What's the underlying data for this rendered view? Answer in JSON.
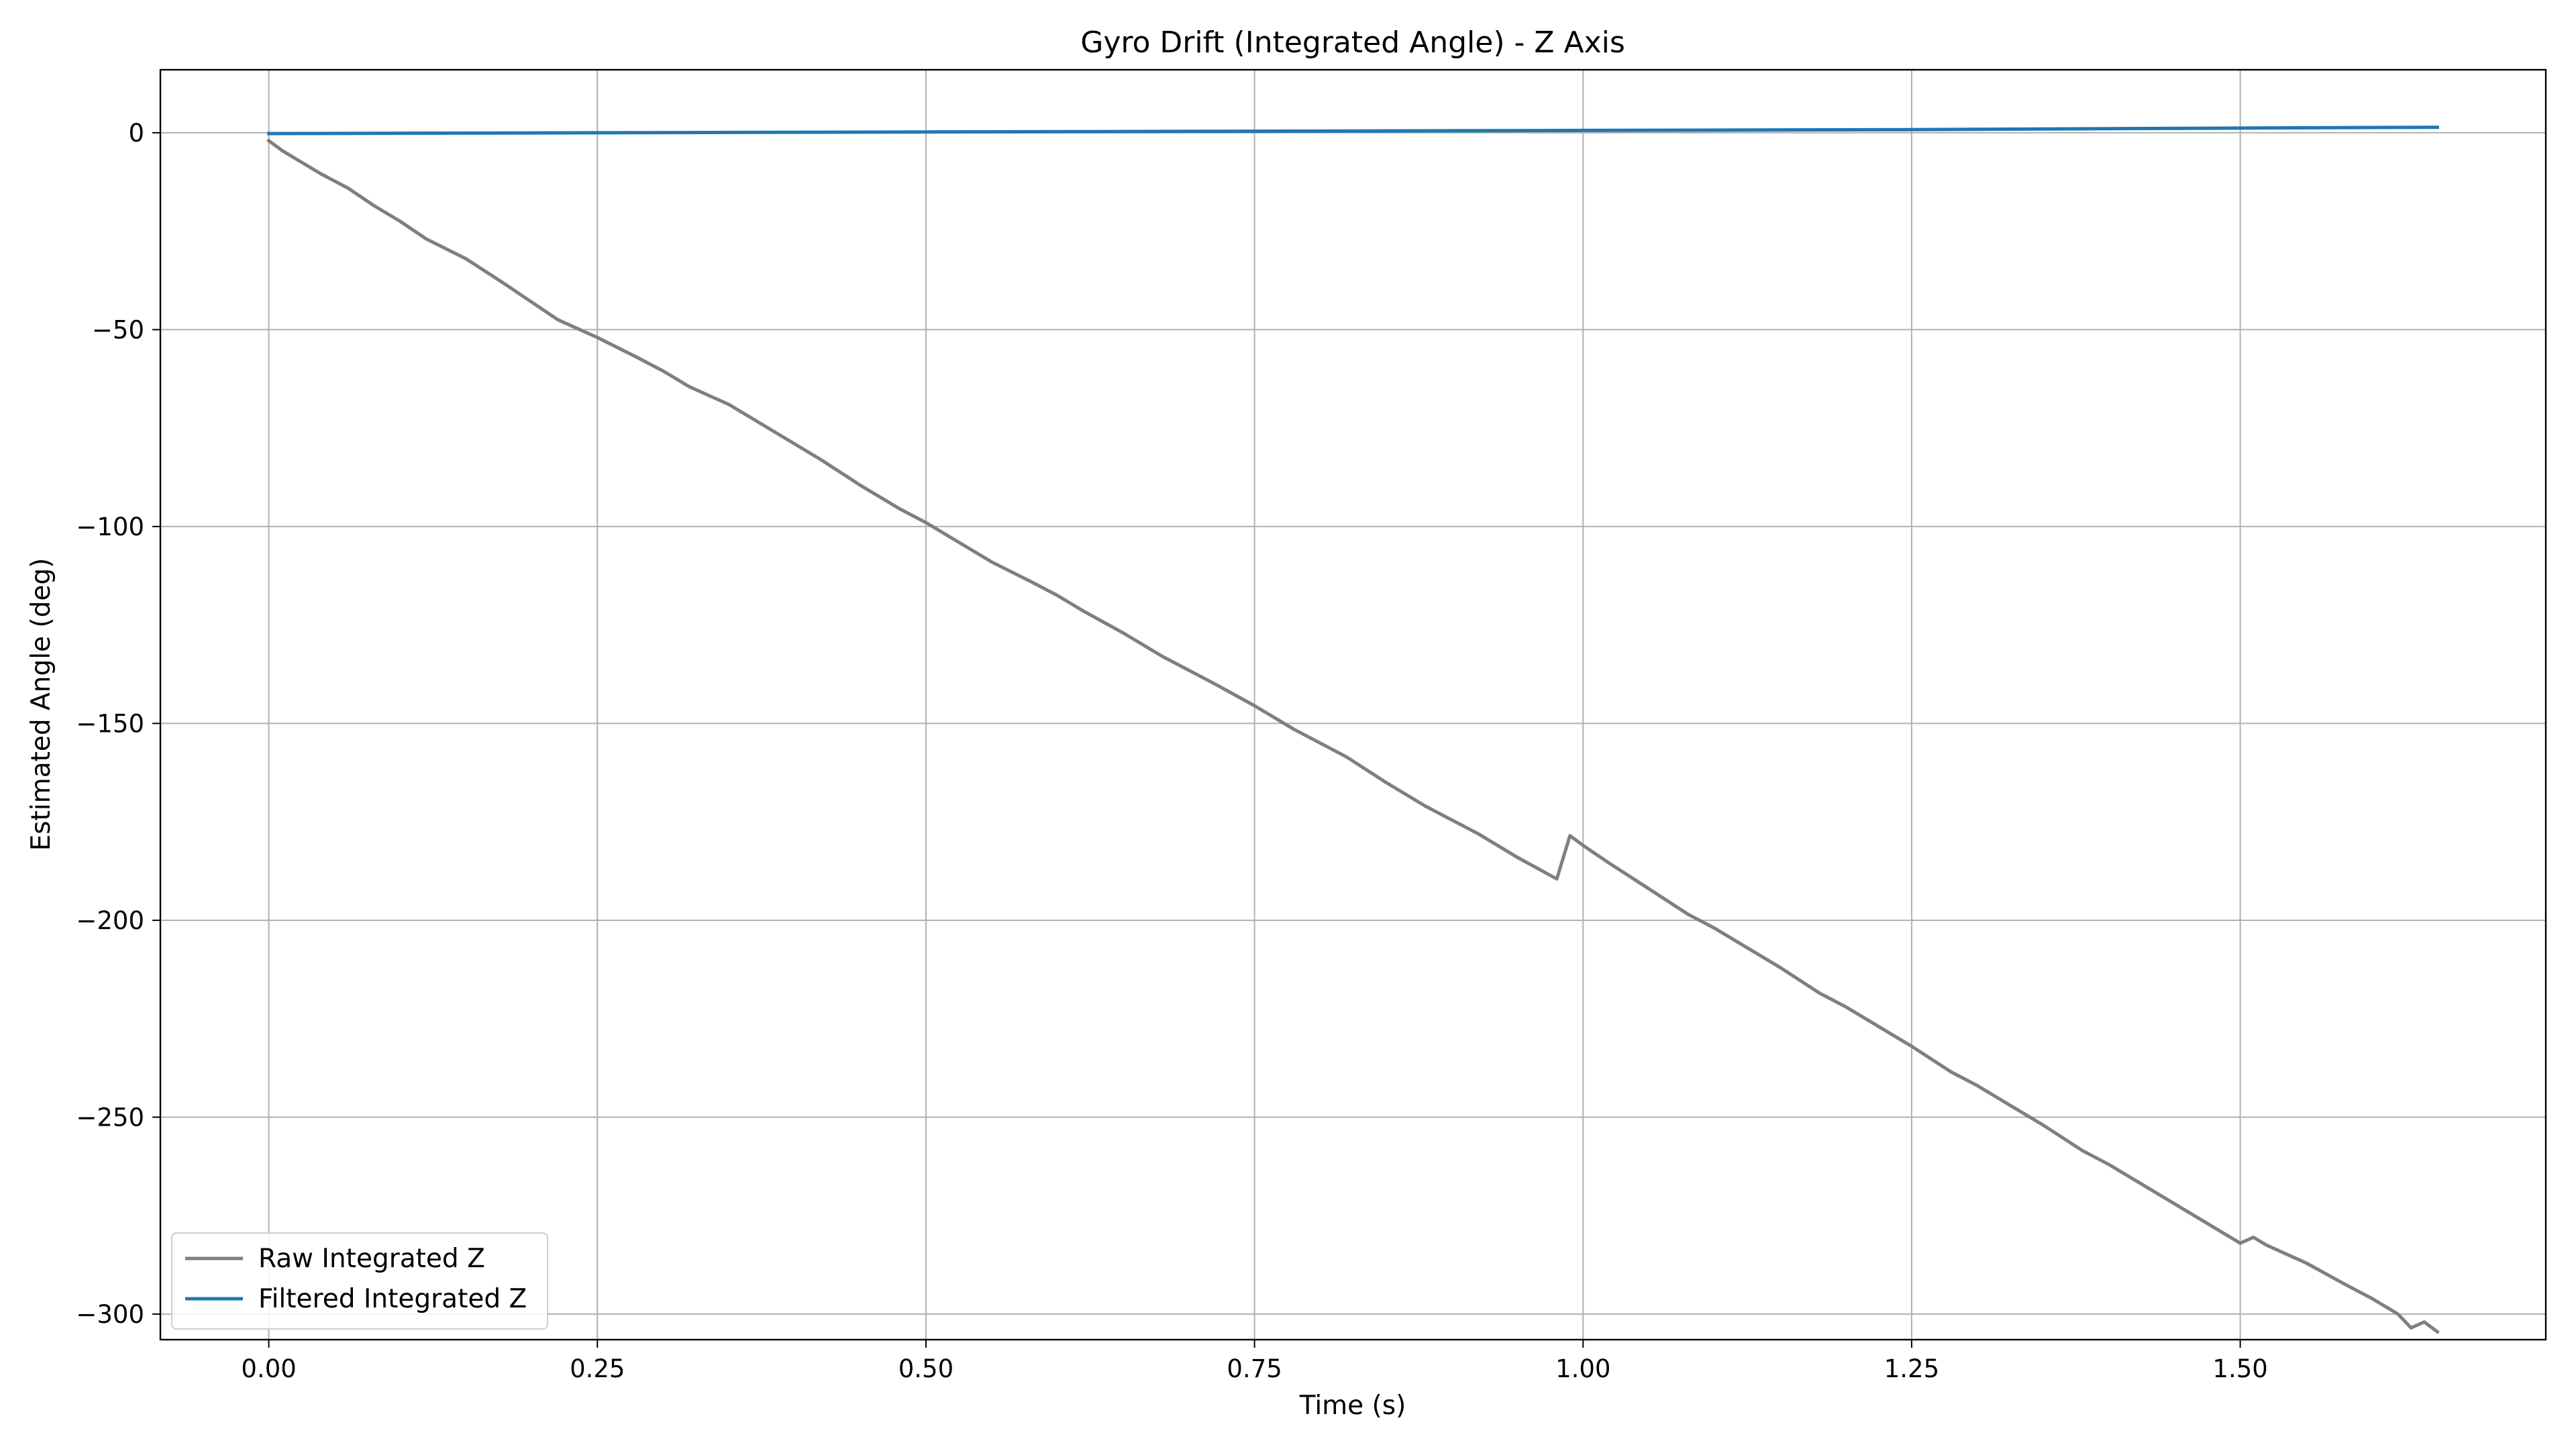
{
  "chart_data": {
    "type": "line",
    "title": "Gyro Drift (Integrated Angle) - Z Axis",
    "xlabel": "Time (s)",
    "ylabel": "Estimated Angle (deg)",
    "xlim": [
      -0.0825,
      1.7325
    ],
    "ylim": [
      -306.5,
      16.0
    ],
    "x_ticks": [
      0.0,
      0.25,
      0.5,
      0.75,
      1.0,
      1.25,
      1.5
    ],
    "x_tick_labels": [
      "0.00",
      "0.25",
      "0.50",
      "0.75",
      "1.00",
      "1.25",
      "1.50"
    ],
    "y_ticks": [
      0,
      -50,
      -100,
      -150,
      -200,
      -250,
      -300
    ],
    "y_tick_labels": [
      "0",
      "−50",
      "−100",
      "−150",
      "−200",
      "−250",
      "−300"
    ],
    "grid": true,
    "legend_position": "lower-left",
    "series": [
      {
        "name": "Raw Integrated Z",
        "color": "#7f7f7f",
        "x": [
          0.0,
          0.01,
          0.02,
          0.04,
          0.06,
          0.08,
          0.1,
          0.12,
          0.15,
          0.18,
          0.2,
          0.22,
          0.25,
          0.28,
          0.3,
          0.32,
          0.35,
          0.38,
          0.4,
          0.42,
          0.45,
          0.48,
          0.5,
          0.52,
          0.55,
          0.58,
          0.6,
          0.62,
          0.65,
          0.68,
          0.7,
          0.72,
          0.75,
          0.78,
          0.8,
          0.82,
          0.85,
          0.88,
          0.9,
          0.92,
          0.95,
          0.98,
          0.99,
          1.0,
          1.02,
          1.05,
          1.08,
          1.1,
          1.12,
          1.15,
          1.18,
          1.2,
          1.22,
          1.25,
          1.28,
          1.3,
          1.32,
          1.35,
          1.38,
          1.4,
          1.42,
          1.45,
          1.48,
          1.5,
          1.51,
          1.52,
          1.55,
          1.58,
          1.6,
          1.62,
          1.63,
          1.64,
          1.65
        ],
        "y": [
          -2,
          -4.5,
          -6.5,
          -10.5,
          -14,
          -18.5,
          -22.5,
          -27,
          -32,
          -38.5,
          -43,
          -47.5,
          -52,
          -57,
          -60.5,
          -64.5,
          -69,
          -75,
          -79,
          -83,
          -89.5,
          -95.5,
          -99,
          -103,
          -109,
          -114,
          -117.5,
          -121.5,
          -127,
          -133,
          -136.5,
          -140,
          -145.5,
          -151.5,
          -155,
          -158.5,
          -165,
          -171,
          -174.5,
          -178,
          -184,
          -189.5,
          -178.5,
          -181,
          -185.5,
          -192,
          -198.5,
          -202,
          -206,
          -212,
          -218.5,
          -222,
          -226,
          -232,
          -238.5,
          -242,
          -246,
          -252,
          -258.5,
          -262,
          -266,
          -272,
          -278,
          -282,
          -280.5,
          -282.5,
          -287,
          -292.5,
          -296,
          -300,
          -303.5,
          -302,
          -304.5
        ]
      },
      {
        "name": "Filtered Integrated Z",
        "color": "#1f77b4",
        "x": [
          0.0,
          0.25,
          0.5,
          0.75,
          1.0,
          1.25,
          1.5,
          1.65
        ],
        "y": [
          -0.2,
          0.0,
          0.2,
          0.4,
          0.6,
          0.8,
          1.2,
          1.4
        ]
      }
    ]
  }
}
